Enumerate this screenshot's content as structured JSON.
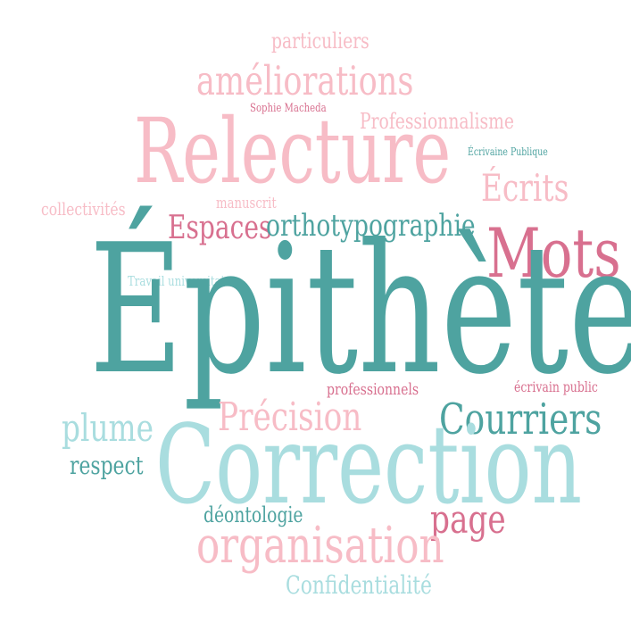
{
  "words": {
    "particuliers": "particuliers",
    "ameliorations": "améliorations",
    "sophie": "Sophie Macheda",
    "professionnalisme": "Professionnalisme",
    "relecture": "Relecture",
    "ecrivaine_publique": "Écrivaine Publique",
    "collectivites": "collectivités",
    "manuscrit": "manuscrit",
    "ecrits": "Écrits",
    "espaces": "Espaces",
    "orthotypographie": "orthotypographie",
    "mots": "Mots",
    "travail_universitaire": "Travail universitaire",
    "epithete": "Épithète",
    "professionnels": "professionnels",
    "ecrivain_public": "écrivain public",
    "precision": "Précision",
    "courriers": "Courriers",
    "plume": "plume",
    "correction": "Correction",
    "respect": "respect",
    "page": "page",
    "deontologie": "déontologie",
    "organisation": "organisation",
    "confidentialite": "Confidentialité"
  },
  "colors": {
    "light_pink": "#f7bcc6",
    "rose": "#d8708f",
    "teal": "#4ea3a0",
    "aqua": "#a9dddf"
  }
}
